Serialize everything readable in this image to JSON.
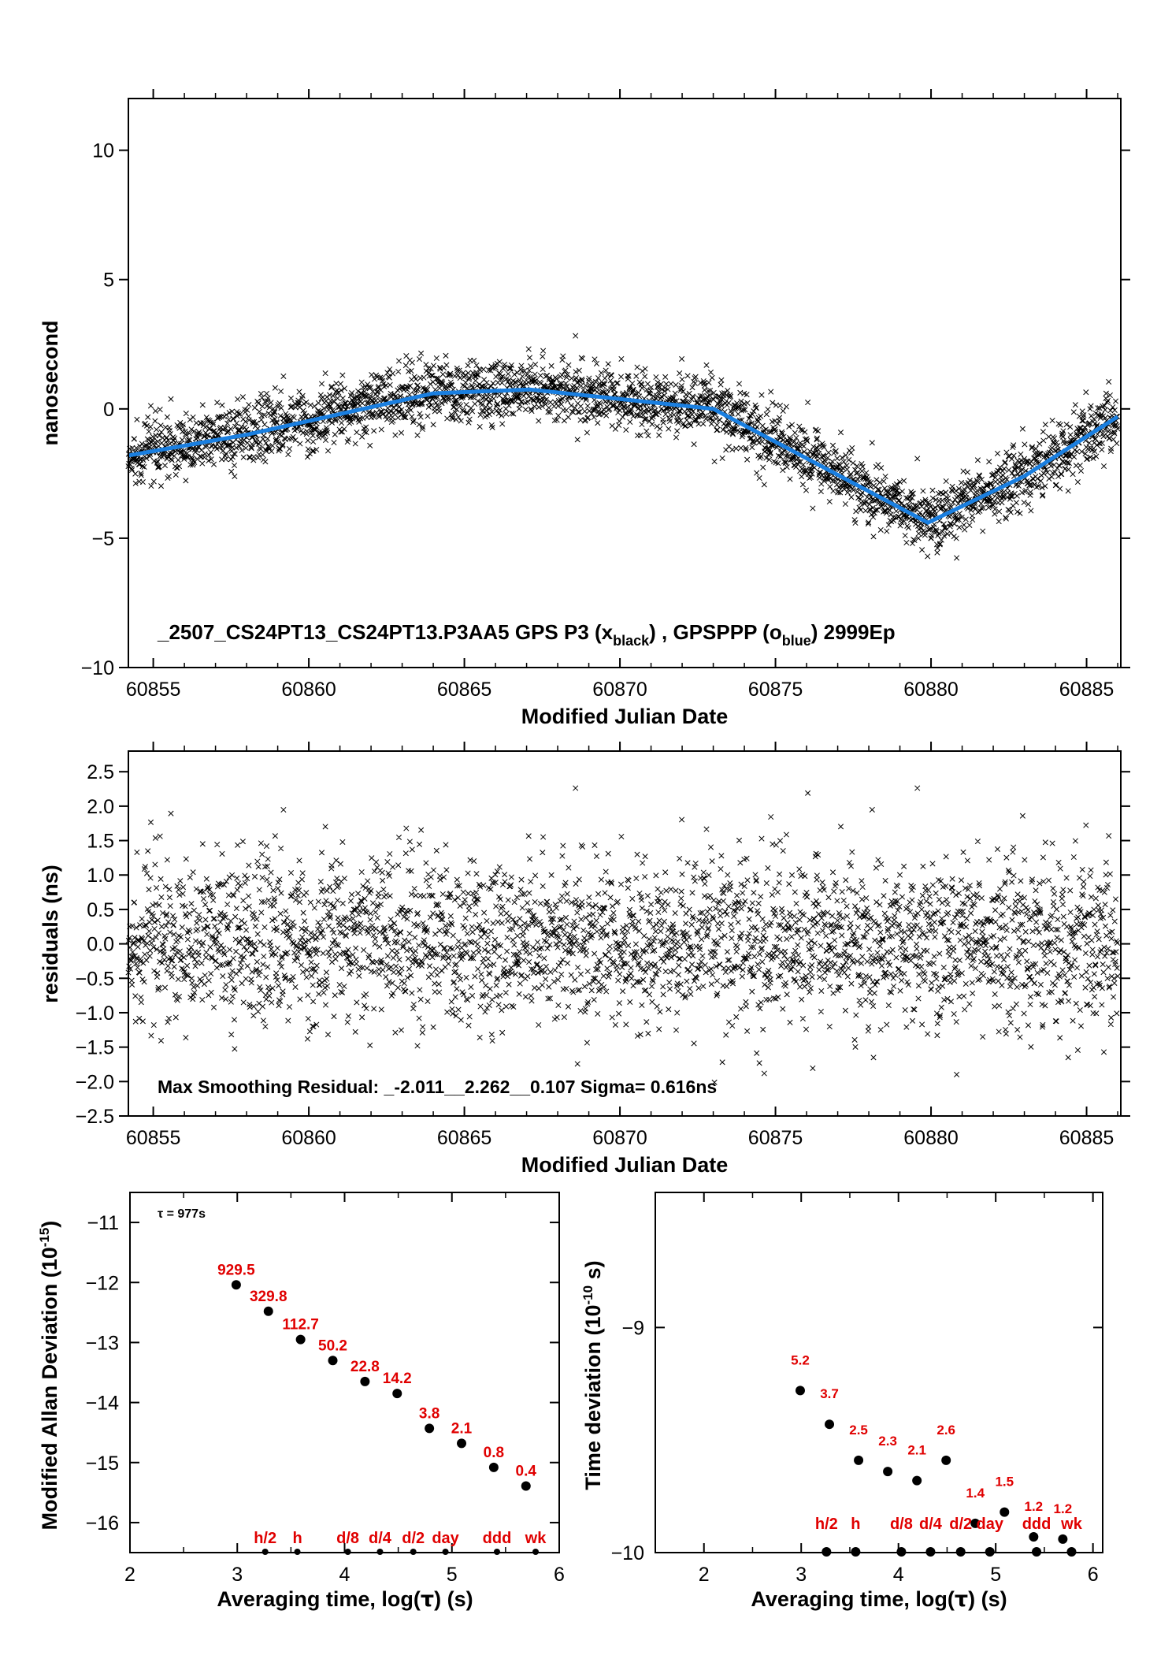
{
  "colors": {
    "series_black": "#000000",
    "series_blue": "#1a7fe0",
    "annotation_red": "#e00000",
    "axis": "#000000"
  },
  "chart_data": [
    {
      "type": "scatter",
      "panel": "phase",
      "xlabel": "Modified Julian Date",
      "ylabel": "nanosecond",
      "xlim": [
        60854.2,
        60886.1
      ],
      "ylim": [
        -10,
        12
      ],
      "xticks": [
        "60855",
        "60860",
        "60865",
        "60870",
        "60875",
        "60880",
        "60885"
      ],
      "yticks": [
        "10",
        "5",
        "0",
        "−5",
        "−10"
      ],
      "annotation": {
        "prefix": "_2507_CS24PT13_CS24PT13.P3AA5     GPS P3 (x",
        "sub1": "black",
        "mid": ") ,  GPSPPP (o",
        "sub2": "blue",
        "suffix": ")  2999Ep"
      },
      "series": [
        {
          "name": "GPS P3",
          "color": "black",
          "marker": "x",
          "x_range": [
            60854.2,
            60886.0
          ],
          "baseline_x": [
            60854.2,
            60858,
            60864,
            60867.1,
            60873,
            60879.9,
            60883,
            60886
          ],
          "baseline_y": [
            -1.8,
            -1.0,
            0.6,
            0.75,
            0.0,
            -4.4,
            -2.6,
            -0.3
          ],
          "noise_sigma_ns": 0.616
        },
        {
          "name": "GPSPPP",
          "color": "blue",
          "x": [
            60854.2,
            60858,
            60864,
            60867.1,
            60873,
            60879.9,
            60883,
            60886
          ],
          "y": [
            -1.8,
            -1.0,
            0.6,
            0.75,
            0.0,
            -4.4,
            -2.6,
            -0.3
          ]
        }
      ]
    },
    {
      "type": "scatter",
      "panel": "residuals",
      "xlabel": "Modified Julian Date",
      "ylabel": "residuals (ns)",
      "xlim": [
        60854.2,
        60886.1
      ],
      "ylim": [
        -2.5,
        2.8
      ],
      "xticks": [
        "60855",
        "60860",
        "60865",
        "60870",
        "60875",
        "60880",
        "60885"
      ],
      "yticks": [
        "2.5",
        "2.0",
        "1.5",
        "1.0",
        "0.5",
        "0.0",
        "−0.5",
        "−1.0",
        "−1.5",
        "−2.0",
        "−2.5"
      ],
      "annotation": "Max Smoothing Residual: _-2.011__2.262__0.107  Sigma= 0.616ns",
      "stats": {
        "min": -2.011,
        "max": 2.262,
        "mean": 0.107,
        "sigma": 0.616
      }
    },
    {
      "type": "scatter",
      "panel": "modified_allan_deviation",
      "xlabel_parts": [
        "Averaging time, log(",
        "τ",
        ") (s)"
      ],
      "ylabel_parts": [
        "Modified Allan Deviation (10",
        "-15",
        ")"
      ],
      "xlim": [
        2,
        6
      ],
      "ylim": [
        -16.5,
        -10.5
      ],
      "xticks": [
        "2",
        "3",
        "4",
        "5",
        "6"
      ],
      "yticks": [
        "−11",
        "−12",
        "−13",
        "−14",
        "−15",
        "−16"
      ],
      "tau_label": "τ = 977s",
      "points": [
        {
          "x": 2.99,
          "y": -12.04,
          "label": "929.5"
        },
        {
          "x": 3.29,
          "y": -12.48,
          "label": "329.8"
        },
        {
          "x": 3.59,
          "y": -12.95,
          "label": "112.7"
        },
        {
          "x": 3.89,
          "y": -13.3,
          "label": "50.2"
        },
        {
          "x": 4.19,
          "y": -13.65,
          "label": "22.8"
        },
        {
          "x": 4.49,
          "y": -13.85,
          "label": "14.2"
        },
        {
          "x": 4.79,
          "y": -14.43,
          "label": "3.8"
        },
        {
          "x": 5.09,
          "y": -14.68,
          "label": "2.1"
        },
        {
          "x": 5.39,
          "y": -15.08,
          "label": "0.8"
        },
        {
          "x": 5.69,
          "y": -15.39,
          "label": "0.4"
        }
      ],
      "time_markers": [
        {
          "x": 3.26,
          "label": "h/2"
        },
        {
          "x": 3.56,
          "label": "h"
        },
        {
          "x": 4.03,
          "label": "d/8"
        },
        {
          "x": 4.33,
          "label": "d/4"
        },
        {
          "x": 4.64,
          "label": "d/2"
        },
        {
          "x": 4.94,
          "label": "day"
        },
        {
          "x": 5.42,
          "label": "ddd"
        },
        {
          "x": 5.78,
          "label": "wk"
        }
      ]
    },
    {
      "type": "scatter",
      "panel": "time_deviation",
      "xlabel_parts": [
        "Averaging time, log(",
        "τ",
        ") (s)"
      ],
      "ylabel_parts": [
        "Time deviation (10",
        "-10",
        " s)"
      ],
      "xlim": [
        1.5,
        6.1
      ],
      "ylim": [
        -10,
        -8.4
      ],
      "xticks": [
        "2",
        "3",
        "4",
        "5",
        "6"
      ],
      "yticks": [
        "−9",
        "−10"
      ],
      "points": [
        {
          "x": 2.99,
          "y": -9.28,
          "label": "5.2"
        },
        {
          "x": 3.29,
          "y": -9.43,
          "label": "3.7"
        },
        {
          "x": 3.59,
          "y": -9.59,
          "label": "2.5"
        },
        {
          "x": 3.89,
          "y": -9.64,
          "label": "2.3"
        },
        {
          "x": 4.19,
          "y": -9.68,
          "label": "2.1"
        },
        {
          "x": 4.49,
          "y": -9.59,
          "label": "2.6"
        },
        {
          "x": 4.79,
          "y": -9.87,
          "label": "1.4"
        },
        {
          "x": 5.09,
          "y": -9.82,
          "label": "1.5"
        },
        {
          "x": 5.39,
          "y": -9.93,
          "label": "1.2"
        },
        {
          "x": 5.69,
          "y": -9.94,
          "label": "1.2"
        }
      ],
      "time_markers": [
        {
          "x": 3.26,
          "label": "h/2"
        },
        {
          "x": 3.56,
          "label": "h"
        },
        {
          "x": 4.03,
          "label": "d/8"
        },
        {
          "x": 4.33,
          "label": "d/4"
        },
        {
          "x": 4.64,
          "label": "d/2"
        },
        {
          "x": 4.94,
          "label": "day"
        },
        {
          "x": 5.42,
          "label": "ddd"
        },
        {
          "x": 5.78,
          "label": "wk"
        }
      ]
    }
  ]
}
